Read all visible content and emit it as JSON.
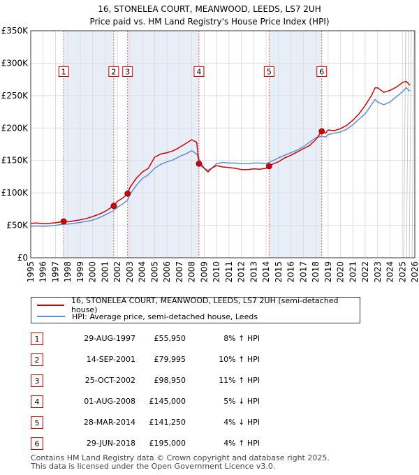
{
  "colors": {
    "price_line": "#cc0000",
    "hpi_line": "#5b8fd6",
    "shade": "#e8eef8",
    "grid": "#dddddd",
    "marker_border": "#cc0000"
  },
  "chart_data": {
    "type": "line",
    "title": "16, STONELEA COURT, MEANWOOD, LEEDS, LS7 2UH",
    "subtitle": "Price paid vs. HM Land Registry's House Price Index (HPI)",
    "xlabel": "",
    "ylabel": "",
    "xlim": [
      1995,
      2026
    ],
    "ylim": [
      0,
      350000
    ],
    "x_ticks": [
      1995,
      1996,
      1997,
      1998,
      1999,
      2000,
      2001,
      2002,
      2003,
      2004,
      2005,
      2006,
      2007,
      2008,
      2009,
      2010,
      2011,
      2012,
      2013,
      2014,
      2015,
      2016,
      2017,
      2018,
      2019,
      2020,
      2021,
      2022,
      2023,
      2024,
      2025,
      2026
    ],
    "y_ticks": [
      {
        "value": 0,
        "label": "£0"
      },
      {
        "value": 50000,
        "label": "£50K"
      },
      {
        "value": 100000,
        "label": "£100K"
      },
      {
        "value": 150000,
        "label": "£150K"
      },
      {
        "value": 200000,
        "label": "£200K"
      },
      {
        "value": 250000,
        "label": "£250K"
      },
      {
        "value": 300000,
        "label": "£300K"
      },
      {
        "value": 350000,
        "label": "£350K"
      }
    ],
    "grid": true,
    "shaded_ranges": [
      [
        1997.66,
        2001.7
      ],
      [
        2002.82,
        2008.58
      ],
      [
        2014.24,
        2018.49
      ]
    ],
    "forecast_start": 2025.1,
    "series": [
      {
        "name": "16, STONELEA COURT, MEANWOOD, LEEDS, LS7 2UH (semi-detached house)",
        "x": [
          1995.0,
          1995.5,
          1996.0,
          1996.5,
          1997.0,
          1997.66,
          1998.0,
          1998.5,
          1999.0,
          1999.5,
          2000.0,
          2000.5,
          2001.0,
          2001.7,
          2002.0,
          2002.5,
          2002.82,
          2003.0,
          2003.5,
          2004.0,
          2004.5,
          2005.0,
          2005.5,
          2006.0,
          2006.5,
          2007.0,
          2007.5,
          2008.0,
          2008.4,
          2008.58,
          2009.0,
          2009.3,
          2009.6,
          2010.0,
          2010.5,
          2011.0,
          2011.5,
          2012.0,
          2012.5,
          2013.0,
          2013.5,
          2014.0,
          2014.24,
          2014.6,
          2015.0,
          2015.5,
          2016.0,
          2016.5,
          2017.0,
          2017.5,
          2018.0,
          2018.49,
          2018.8,
          2019.0,
          2019.5,
          2020.0,
          2020.5,
          2021.0,
          2021.5,
          2022.0,
          2022.5,
          2022.8,
          2023.0,
          2023.5,
          2024.0,
          2024.5,
          2025.0,
          2025.3,
          2025.6
        ],
        "values": [
          53000,
          53500,
          52500,
          53000,
          54000,
          55950,
          55500,
          57000,
          58500,
          60500,
          63500,
          67000,
          71500,
          79995,
          87000,
          93000,
          98950,
          108000,
          122000,
          132000,
          138000,
          155000,
          160000,
          162000,
          165000,
          170000,
          176000,
          182000,
          178000,
          145000,
          138000,
          132000,
          138000,
          142000,
          140000,
          139000,
          138000,
          136000,
          136000,
          137000,
          136500,
          138000,
          141250,
          145000,
          148000,
          154000,
          158000,
          163000,
          168000,
          173000,
          182000,
          195000,
          192000,
          197000,
          196000,
          199000,
          204000,
          212000,
          222000,
          235000,
          250000,
          262000,
          262000,
          255000,
          258000,
          263000,
          270000,
          272000,
          266000
        ]
      },
      {
        "name": "HPI: Average price, semi-detached house, Leeds",
        "x": [
          1995.0,
          1995.5,
          1996.0,
          1996.5,
          1997.0,
          1997.66,
          1998.0,
          1998.5,
          1999.0,
          1999.5,
          2000.0,
          2000.5,
          2001.0,
          2001.7,
          2002.0,
          2002.5,
          2002.82,
          2003.0,
          2003.5,
          2004.0,
          2004.5,
          2005.0,
          2005.5,
          2006.0,
          2006.5,
          2007.0,
          2007.5,
          2008.0,
          2008.4,
          2008.58,
          2009.0,
          2009.3,
          2009.6,
          2010.0,
          2010.5,
          2011.0,
          2011.5,
          2012.0,
          2012.5,
          2013.0,
          2013.5,
          2014.0,
          2014.24,
          2014.6,
          2015.0,
          2015.5,
          2016.0,
          2016.5,
          2017.0,
          2017.5,
          2018.0,
          2018.49,
          2018.8,
          2019.0,
          2019.5,
          2020.0,
          2020.5,
          2021.0,
          2021.5,
          2022.0,
          2022.5,
          2022.8,
          2023.0,
          2023.5,
          2024.0,
          2024.5,
          2025.0,
          2025.3,
          2025.6
        ],
        "values": [
          48500,
          49000,
          48500,
          49000,
          50000,
          51800,
          52000,
          53000,
          54500,
          56000,
          58000,
          61500,
          66000,
          72700,
          78000,
          84000,
          89100,
          97000,
          111000,
          122000,
          128000,
          138000,
          144000,
          148000,
          151000,
          156000,
          160000,
          165000,
          160000,
          152500,
          138000,
          135000,
          138000,
          145000,
          147000,
          146000,
          146000,
          145000,
          145000,
          146000,
          146000,
          145000,
          147000,
          150000,
          154000,
          158000,
          162000,
          166000,
          171000,
          178000,
          185000,
          187500,
          186000,
          190000,
          192000,
          194000,
          198000,
          205000,
          214000,
          222000,
          236000,
          244000,
          240000,
          236000,
          240000,
          248000,
          256000,
          262000,
          257000
        ]
      }
    ],
    "markers": [
      {
        "label": "1",
        "x": 1997.66,
        "value": 55950
      },
      {
        "label": "2",
        "x": 2001.7,
        "value": 79995
      },
      {
        "label": "3",
        "x": 2002.82,
        "value": 98950
      },
      {
        "label": "4",
        "x": 2008.58,
        "value": 145000
      },
      {
        "label": "5",
        "x": 2014.24,
        "value": 141250
      },
      {
        "label": "6",
        "x": 2018.49,
        "value": 195000
      }
    ],
    "marker_label_value": 287000
  },
  "legend": {
    "price": "16, STONELEA COURT, MEANWOOD, LEEDS, LS7 2UH (semi-detached house)",
    "hpi": "HPI: Average price, semi-detached house, Leeds"
  },
  "sales": [
    {
      "num": "1",
      "date": "29-AUG-1997",
      "price": "£55,950",
      "hpi": "8% ↑ HPI"
    },
    {
      "num": "2",
      "date": "14-SEP-2001",
      "price": "£79,995",
      "hpi": "10% ↑ HPI"
    },
    {
      "num": "3",
      "date": "25-OCT-2002",
      "price": "£98,950",
      "hpi": "11% ↑ HPI"
    },
    {
      "num": "4",
      "date": "01-AUG-2008",
      "price": "£145,000",
      "hpi": "5% ↓ HPI"
    },
    {
      "num": "5",
      "date": "28-MAR-2014",
      "price": "£141,250",
      "hpi": "4% ↓ HPI"
    },
    {
      "num": "6",
      "date": "29-JUN-2018",
      "price": "£195,000",
      "hpi": "4% ↑ HPI"
    }
  ],
  "footer": {
    "line1": "Contains HM Land Registry data © Crown copyright and database right 2025.",
    "line2": "This data is licensed under the Open Government Licence v3.0."
  }
}
